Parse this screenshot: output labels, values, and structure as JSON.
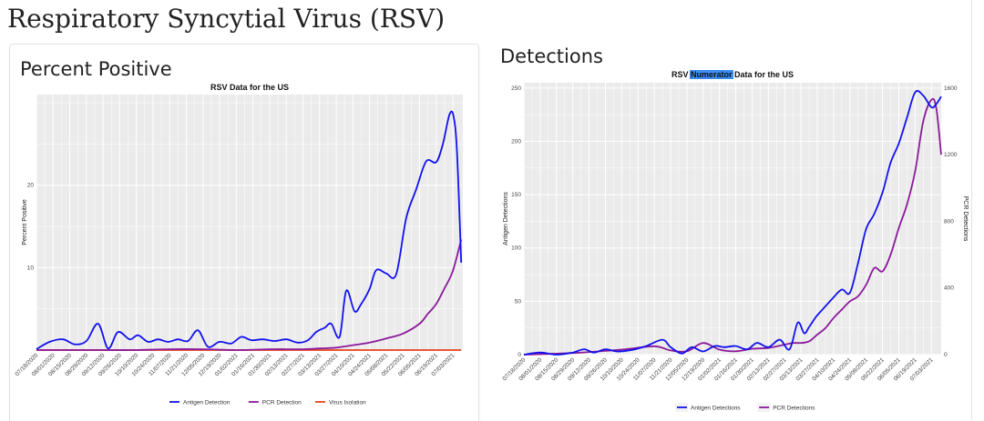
{
  "page": {
    "title": "Respiratory Syncytial Virus (RSV)"
  },
  "panels": {
    "percent_positive": {
      "heading": "Percent Positive"
    },
    "detections": {
      "heading": "Detections"
    }
  },
  "colors": {
    "antigen": "#1111ee",
    "pcr": "#8b1a9b",
    "virus": "#e8431a",
    "panel_bg": "#ebebeb",
    "highlight": "#3b8df0"
  },
  "chart_data": [
    {
      "type": "line",
      "title": "RSV Data for the US",
      "xlabel": "",
      "ylabel": "Percent Positive",
      "ylim": [
        0,
        31
      ],
      "yticks": [
        10,
        20
      ],
      "grid": true,
      "legend_position": "bottom",
      "x_tick_labels": [
        "07/18/2020",
        "08/01/2020",
        "08/15/2020",
        "08/29/2020",
        "09/12/2020",
        "09/26/2020",
        "10/10/2020",
        "10/24/2020",
        "11/07/2020",
        "11/21/2020",
        "12/05/2020",
        "12/19/2020",
        "01/02/2021",
        "01/16/2021",
        "01/30/2021",
        "02/13/2021",
        "02/27/2021",
        "03/13/2021",
        "03/27/2021",
        "04/10/2021",
        "04/24/2021",
        "05/08/2021",
        "05/22/2021",
        "06/05/2021",
        "06/19/2021",
        "07/03/2021"
      ],
      "series": [
        {
          "name": "Antigen Detection",
          "color": "#1111ee",
          "x": [
            0,
            0.8,
            1.6,
            2.3,
            3,
            3.7,
            4.3,
            4.9,
            5.6,
            6.1,
            6.7,
            7.3,
            7.9,
            8.5,
            9.1,
            9.7,
            10.3,
            11,
            11.7,
            12.3,
            12.9,
            13.6,
            14.3,
            15,
            15.7,
            16.3,
            16.8,
            17.3,
            17.7,
            18.2,
            18.6,
            19.1,
            19.5,
            20,
            20.4,
            21,
            21.6,
            22.2,
            22.8,
            23.4,
            24,
            24.4,
            24.8,
            25.05,
            25.25,
            25.5
          ],
          "values": [
            0.1,
            1,
            1.3,
            0.7,
            1.1,
            3.2,
            0.2,
            2.2,
            1.3,
            1.8,
            1,
            1.3,
            1,
            1.3,
            1.1,
            2.4,
            0.4,
            1,
            0.8,
            1.6,
            1.2,
            1.3,
            1.1,
            1.3,
            0.9,
            1.2,
            2.2,
            2.7,
            3.2,
            1.6,
            7.2,
            4.7,
            5.6,
            7.4,
            9.7,
            9.3,
            9.2,
            16,
            19.5,
            22.9,
            22.8,
            25,
            28.6,
            28.3,
            24,
            10.6
          ]
        },
        {
          "name": "PCR Detection",
          "color": "#8b1a9b",
          "x": [
            0,
            2,
            4,
            6,
            8,
            10,
            12,
            14,
            15,
            16,
            17,
            18,
            19,
            20,
            21,
            22,
            23,
            23.5,
            24,
            24.5,
            25,
            25.5
          ],
          "values": [
            0,
            0,
            0,
            0,
            0.1,
            0.1,
            0,
            0.1,
            0.1,
            0.1,
            0.2,
            0.3,
            0.6,
            0.9,
            1.4,
            2,
            3.2,
            4.4,
            5.6,
            7.5,
            9.6,
            13.4
          ]
        },
        {
          "name": "Virus Isolation",
          "color": "#e8431a",
          "x": [
            0,
            5,
            10,
            15,
            20,
            25.5
          ],
          "values": [
            0,
            0,
            0,
            0,
            0,
            0
          ]
        }
      ]
    },
    {
      "type": "line",
      "title_parts": [
        "RSV ",
        "Numerator",
        " Data for the US"
      ],
      "title_highlight_index": 1,
      "xlabel": "",
      "ylabel": "Antigen Detections",
      "y2label": "PCR Detections",
      "ylim": [
        0,
        255
      ],
      "yticks": [
        0,
        50,
        100,
        150,
        200,
        250
      ],
      "y2lim": [
        0,
        1632
      ],
      "y2ticks": [
        0,
        400,
        800,
        1200,
        1600
      ],
      "grid": true,
      "legend_position": "bottom",
      "x_tick_labels": [
        "07/18/2020",
        "08/01/2020",
        "08/15/2020",
        "08/29/2020",
        "09/12/2020",
        "09/26/2020",
        "10/10/2020",
        "10/24/2020",
        "11/07/2020",
        "11/21/2020",
        "12/05/2020",
        "12/19/2020",
        "01/02/2021",
        "01/16/2021",
        "01/30/2021",
        "02/13/2021",
        "02/27/2021",
        "03/13/2021",
        "03/27/2021",
        "04/10/2021",
        "04/24/2021",
        "05/08/2021",
        "05/22/2021",
        "06/05/2021",
        "06/19/2021",
        "07/03/2021"
      ],
      "series": [
        {
          "name": "Antigen Detections",
          "axis": "left",
          "color": "#1111ee",
          "x": [
            0,
            1,
            2,
            3,
            3.7,
            4.3,
            5,
            5.7,
            6.5,
            7.5,
            8.5,
            9,
            9.7,
            10.3,
            11,
            11.7,
            12.3,
            13,
            13.7,
            14.3,
            15,
            15.7,
            16.3,
            16.8,
            17.2,
            17.5,
            17.9,
            18.3,
            18.9,
            19.5,
            20,
            20.5,
            21,
            21.5,
            22,
            22.5,
            23,
            23.5,
            24,
            24.5,
            25,
            25.3,
            25.6
          ],
          "values": [
            0,
            2,
            0,
            2,
            5,
            2,
            5,
            3,
            4,
            8,
            14,
            7,
            1,
            7,
            3,
            8,
            7,
            8,
            5,
            11,
            7,
            14,
            5,
            30,
            20,
            26,
            35,
            42,
            52,
            61,
            58,
            86,
            118,
            132,
            152,
            180,
            198,
            222,
            246,
            243,
            232,
            235,
            242
          ]
        },
        {
          "name": "PCR Detections",
          "axis": "right",
          "color": "#8b1a9b",
          "x": [
            0,
            3,
            6,
            8,
            9,
            10,
            11,
            12,
            13,
            14,
            15,
            16,
            16.5,
            17,
            17.5,
            18,
            18.5,
            19,
            19.5,
            20,
            20.5,
            21,
            21.5,
            22,
            22.5,
            23,
            23.5,
            24,
            24.5,
            25,
            25.3,
            25.6
          ],
          "values": [
            0,
            10,
            30,
            50,
            25,
            20,
            70,
            30,
            20,
            35,
            40,
            60,
            70,
            70,
            80,
            120,
            160,
            220,
            270,
            320,
            350,
            420,
            520,
            500,
            600,
            760,
            900,
            1100,
            1400,
            1530,
            1480,
            1200
          ]
        }
      ]
    }
  ]
}
